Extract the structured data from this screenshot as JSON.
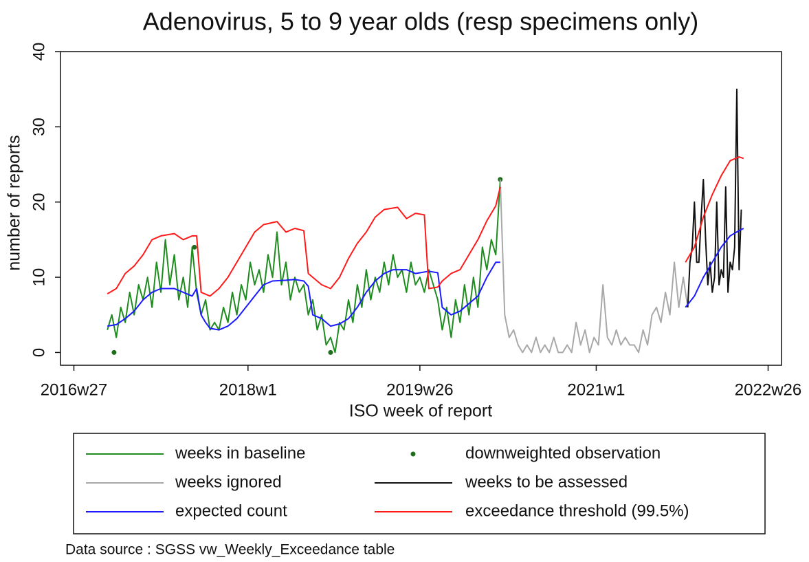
{
  "chart_data": {
    "type": "line",
    "title": "Adenovirus, 5 to 9 year olds (resp specimens only)",
    "x_label": "ISO week of report",
    "y_label": "number of reports",
    "source": "Data source : SGSS vw_Weekly_Exceedance table",
    "xlim": [
      2932,
      3255
    ],
    "xticks": [
      {
        "value": 2938,
        "label": "2016w27"
      },
      {
        "value": 3016,
        "label": "2018w1"
      },
      {
        "value": 3093,
        "label": "2019w26"
      },
      {
        "value": 3172,
        "label": "2021w1"
      },
      {
        "value": 3249,
        "label": "2022w26"
      }
    ],
    "ylim": [
      -1.7,
      40
    ],
    "yticks": [
      0,
      10,
      20,
      30,
      40
    ],
    "legend_order": [
      0,
      1,
      2,
      3,
      4,
      5
    ],
    "series": [
      {
        "name": "weeks in baseline",
        "color": "#1e8c1e",
        "mode": "line",
        "x": [
          2953,
          2955,
          2957,
          2959,
          2961,
          2963,
          2965,
          2967,
          2969,
          2971,
          2973,
          2975,
          2977,
          2979,
          2981,
          2983,
          2985,
          2987,
          2989,
          2991,
          2993,
          2995,
          2997,
          2999,
          3001,
          3003,
          3005,
          3007,
          3009,
          3011,
          3013,
          3015,
          3017,
          3019,
          3021,
          3023,
          3025,
          3027,
          3029,
          3031,
          3033,
          3035,
          3037,
          3039,
          3041,
          3043,
          3045,
          3047,
          3049,
          3051,
          3053,
          3055,
          3057,
          3059,
          3061,
          3063,
          3065,
          3067,
          3069,
          3071,
          3073,
          3075,
          3077,
          3079,
          3081,
          3083,
          3085,
          3087,
          3089,
          3091,
          3093,
          3095,
          3097,
          3099,
          3101,
          3103,
          3105,
          3107,
          3109,
          3111,
          3113,
          3115,
          3117,
          3119,
          3121,
          3123,
          3125,
          3127,
          3129
        ],
        "values": [
          3,
          5,
          2,
          6,
          4,
          8,
          5,
          9,
          7,
          10,
          6,
          12,
          8,
          15,
          9,
          13,
          7,
          10,
          6,
          14,
          8,
          5,
          7,
          3,
          4,
          3,
          6,
          4,
          8,
          5,
          9,
          7,
          12,
          9,
          11,
          8,
          13,
          10,
          16,
          9,
          12,
          7,
          10,
          8,
          9,
          5,
          7,
          3,
          5,
          1,
          2,
          0,
          4,
          3,
          7,
          4,
          9,
          6,
          11,
          7,
          10,
          8,
          12,
          9,
          13,
          10,
          11,
          8,
          12,
          9,
          10,
          8,
          11,
          9,
          7,
          3,
          6,
          2,
          7,
          4,
          9,
          5,
          10,
          6,
          14,
          11,
          15,
          13,
          23
        ]
      },
      {
        "name": "downweighted observation",
        "color": "#1e6e1e",
        "mode": "markers",
        "x": [
          2956,
          2992,
          3053,
          3129
        ],
        "values": [
          0,
          14,
          0,
          23
        ]
      },
      {
        "name": "weeks ignored",
        "color": "#a8a8a8",
        "mode": "line",
        "x": [
          3129,
          3131,
          3133,
          3135,
          3137,
          3139,
          3141,
          3143,
          3145,
          3147,
          3149,
          3151,
          3153,
          3155,
          3157,
          3159,
          3161,
          3163,
          3165,
          3167,
          3169,
          3171,
          3173,
          3175,
          3177,
          3179,
          3181,
          3183,
          3185,
          3187,
          3189,
          3191,
          3193,
          3195,
          3197,
          3199,
          3201,
          3203,
          3205,
          3207,
          3209,
          3211,
          3213
        ],
        "values": [
          23,
          5,
          2,
          3,
          1,
          0,
          1,
          0,
          2,
          0,
          1,
          0,
          2,
          0,
          0,
          1,
          0,
          4,
          1,
          3,
          0,
          2,
          1,
          9,
          2,
          1,
          3,
          1,
          2,
          1,
          1,
          0,
          3,
          1,
          5,
          6,
          4,
          8,
          5,
          12,
          6,
          10,
          6
        ]
      },
      {
        "name": "weeks to be assessed",
        "color": "#111111",
        "mode": "line",
        "x": [
          3213,
          3214,
          3215,
          3216,
          3217,
          3218,
          3219,
          3220,
          3221,
          3222,
          3223,
          3224,
          3225,
          3226,
          3227,
          3228,
          3229,
          3230,
          3231,
          3232,
          3233,
          3234,
          3235,
          3236,
          3237
        ],
        "values": [
          6,
          12,
          14,
          20,
          12,
          12,
          18,
          23,
          15,
          9,
          12,
          8,
          10,
          20,
          9,
          11,
          10,
          22,
          8,
          12,
          11,
          14,
          35,
          11,
          19
        ]
      },
      {
        "name": "expected count",
        "color": "#1a1aff",
        "mode": "line",
        "x": [
          2953,
          2957,
          2961,
          2965,
          2969,
          2973,
          2977,
          2983,
          2987,
          2991,
          2993,
          2995,
          2997,
          2999,
          3003,
          3007,
          3011,
          3015,
          3019,
          3023,
          3027,
          3033,
          3037,
          3041,
          3043,
          3045,
          3049,
          3053,
          3057,
          3061,
          3065,
          3069,
          3073,
          3077,
          3081,
          3087,
          3091,
          3097,
          3101,
          3103,
          3107,
          3111,
          3115,
          3119,
          3123,
          3127,
          3129,
          null,
          3212,
          3216,
          3220,
          3224,
          3228,
          3232,
          3236,
          3238
        ],
        "values": [
          3.5,
          3.7,
          4.5,
          5.5,
          7,
          8,
          8.5,
          8.5,
          8,
          7.5,
          8.5,
          5,
          4,
          3.2,
          3,
          3.5,
          4.5,
          6,
          7.5,
          9,
          9.5,
          9.6,
          9.7,
          9.5,
          8.8,
          5,
          4.5,
          3.5,
          3.8,
          4.5,
          6,
          8,
          9.5,
          10.5,
          11,
          11,
          10.5,
          10.8,
          10.6,
          6,
          5,
          5.5,
          6.5,
          7.5,
          10,
          12,
          12,
          null,
          6,
          7.5,
          10,
          12,
          14,
          15.5,
          16.2,
          16.5
        ]
      },
      {
        "name": "exceedance threshold (99.5%)",
        "color": "#ff1a1a",
        "mode": "line",
        "x": [
          2953,
          2957,
          2961,
          2965,
          2969,
          2973,
          2977,
          2983,
          2987,
          2991,
          2993,
          2995,
          2999,
          3003,
          3007,
          3011,
          3015,
          3019,
          3023,
          3029,
          3033,
          3037,
          3041,
          3043,
          3049,
          3053,
          3057,
          3061,
          3065,
          3069,
          3073,
          3077,
          3083,
          3087,
          3091,
          3095,
          3097,
          3101,
          3103,
          3107,
          3111,
          3115,
          3119,
          3123,
          3127,
          3129,
          null,
          3212,
          3216,
          3220,
          3224,
          3228,
          3232,
          3236,
          3238
        ],
        "values": [
          7.8,
          8.5,
          10.5,
          11.5,
          13,
          15,
          15.5,
          15.8,
          15,
          15.5,
          15.5,
          8,
          7.5,
          8.5,
          10,
          12,
          14,
          16,
          17,
          17.4,
          16,
          16.5,
          16.2,
          10.5,
          9,
          8.5,
          10,
          12.5,
          14.5,
          16,
          18,
          19,
          19.3,
          17.8,
          18.5,
          18.3,
          8.5,
          8.7,
          9.5,
          10.5,
          11,
          13,
          15,
          17.5,
          19.5,
          22,
          null,
          12,
          14,
          18,
          21,
          23.5,
          25.5,
          26,
          25.8
        ]
      }
    ]
  }
}
